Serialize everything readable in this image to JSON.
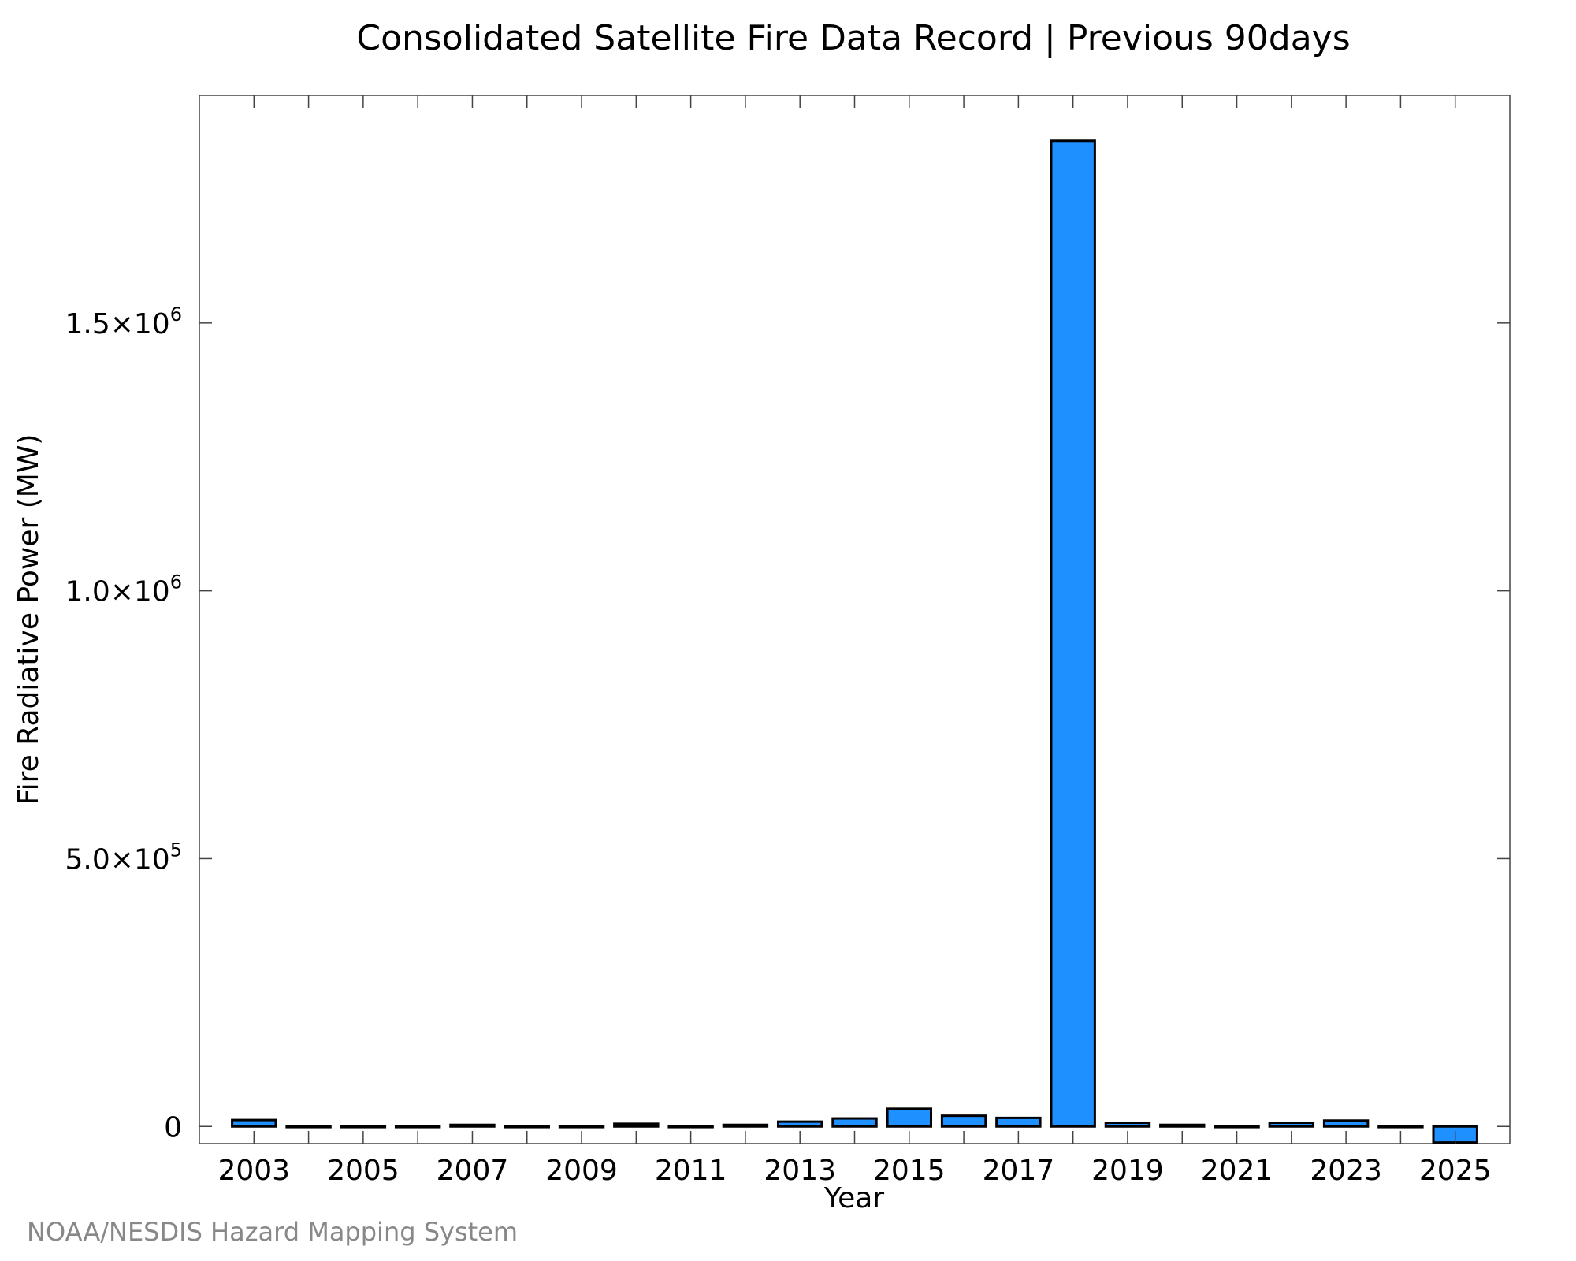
{
  "credit": "NOAA/NESDIS Hazard Mapping System",
  "colors": {
    "bar_fill": "#1e90ff",
    "bar_stroke": "#000000",
    "axis": "#444444",
    "text": "#000000",
    "credit": "#888888"
  },
  "chart_data": {
    "type": "bar",
    "title": "Consolidated Satellite Fire Data Record | Previous 90days",
    "xlabel": "Year",
    "ylabel": "Fire Radiative Power (MW)",
    "categories": [
      "2003",
      "2004",
      "2005",
      "2006",
      "2007",
      "2008",
      "2009",
      "2010",
      "2011",
      "2012",
      "2013",
      "2014",
      "2015",
      "2016",
      "2017",
      "2018",
      "2019",
      "2020",
      "2021",
      "2022",
      "2023",
      "2024",
      "2025"
    ],
    "values": [
      12000,
      1000,
      1000,
      1000,
      3000,
      1000,
      1000,
      5000,
      1000,
      3000,
      9000,
      15000,
      33000,
      20000,
      16000,
      1840000,
      7000,
      3000,
      1000,
      7000,
      11000,
      1000,
      -30000
    ],
    "xticks": [
      "2003",
      "2005",
      "2007",
      "2009",
      "2011",
      "2013",
      "2015",
      "2017",
      "2019",
      "2021",
      "2023",
      "2025"
    ],
    "yticks": [
      {
        "value": 0,
        "mantissa": "0",
        "exp": ""
      },
      {
        "value": 500000,
        "mantissa": "5.0×10",
        "exp": "5"
      },
      {
        "value": 1000000,
        "mantissa": "1.0×10",
        "exp": "6"
      },
      {
        "value": 1500000,
        "mantissa": "1.5×10",
        "exp": "6"
      }
    ],
    "ylim": [
      -32000,
      1925000
    ],
    "grid": false,
    "legend": "none"
  }
}
